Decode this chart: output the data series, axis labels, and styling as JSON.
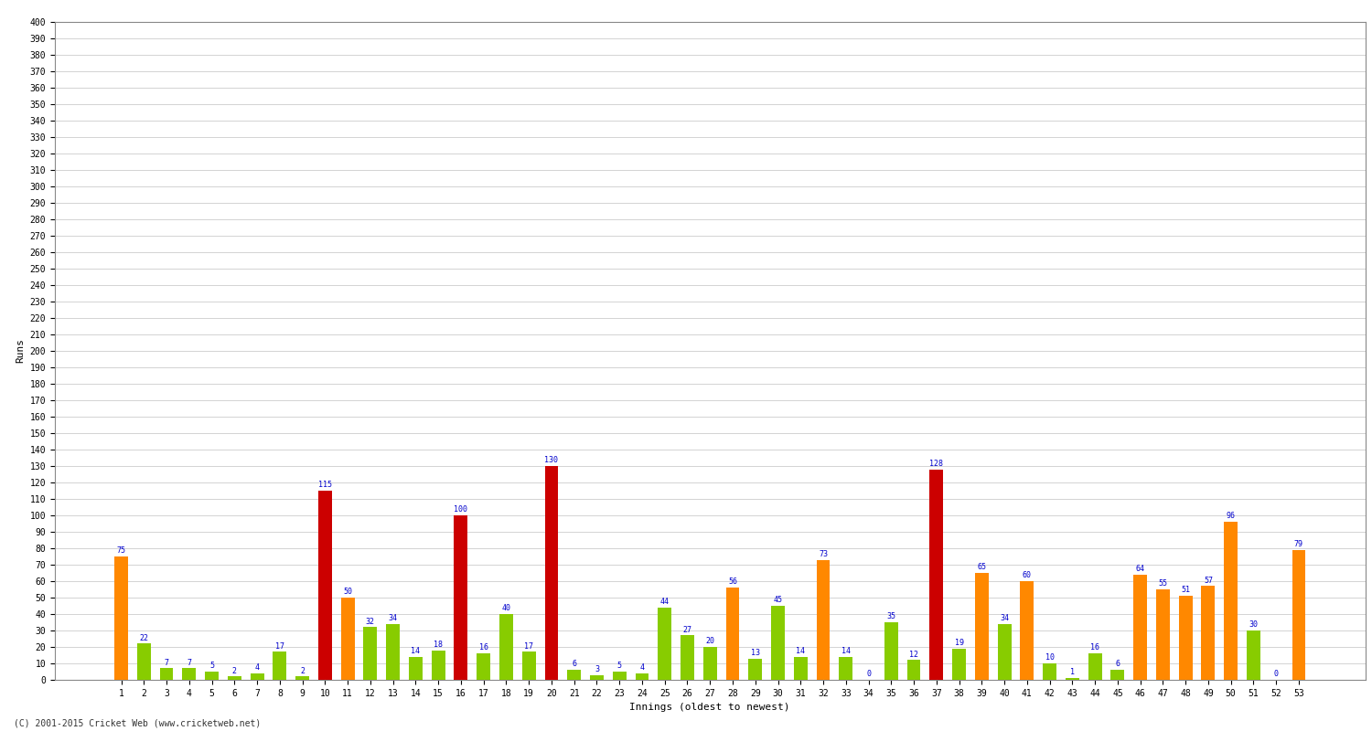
{
  "innings": [
    1,
    2,
    3,
    4,
    5,
    6,
    7,
    8,
    9,
    10,
    11,
    12,
    13,
    14,
    15,
    16,
    17,
    18,
    19,
    20,
    21,
    22,
    23,
    24,
    25,
    26,
    27,
    28,
    29,
    30,
    31,
    32,
    33,
    34,
    35,
    36,
    37,
    38,
    39,
    40,
    41,
    42,
    43,
    44,
    45,
    46,
    47,
    48,
    49,
    50,
    51,
    52,
    53
  ],
  "values": [
    75,
    22,
    7,
    7,
    5,
    2,
    4,
    17,
    2,
    115,
    50,
    32,
    34,
    14,
    18,
    100,
    16,
    40,
    17,
    130,
    6,
    3,
    5,
    4,
    44,
    27,
    20,
    56,
    13,
    45,
    14,
    73,
    14,
    0,
    35,
    12,
    128,
    19,
    65,
    34,
    60,
    10,
    1,
    16,
    6,
    64,
    55,
    51,
    57,
    96,
    30,
    0,
    79
  ],
  "xlabel": "Innings (oldest to newest)",
  "ylabel": "Runs",
  "footer": "(C) 2001-2015 Cricket Web (www.cricketweb.net)",
  "ylim": [
    0,
    400
  ],
  "ytick_step": 10,
  "color_century": "#cc0000",
  "color_fifty": "#ff8800",
  "color_other": "#88cc00",
  "value_color": "#0000cc",
  "background_color": "#ffffff",
  "grid_color": "#cccccc",
  "bar_width": 0.6,
  "label_fontsize": 6,
  "tick_fontsize": 7,
  "axis_label_fontsize": 8
}
